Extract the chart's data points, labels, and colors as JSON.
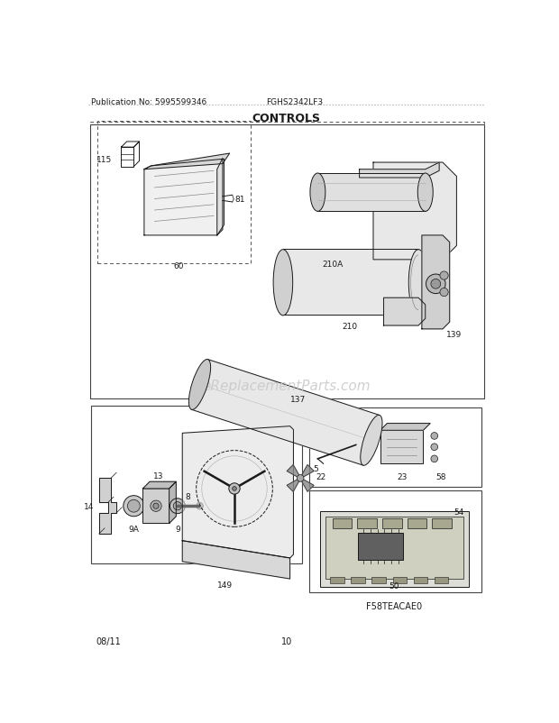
{
  "title": "CONTROLS",
  "pub_no": "Publication No: 5995599346",
  "model": "FGHS2342LF3",
  "date": "08/11",
  "page": "10",
  "watermark": "eReplacementParts.com",
  "bg_color": "#ffffff",
  "line_color": "#1a1a1a",
  "text_color": "#1a1a1a",
  "watermark_color": "#c8c8c8",
  "dash_color": "#888888"
}
